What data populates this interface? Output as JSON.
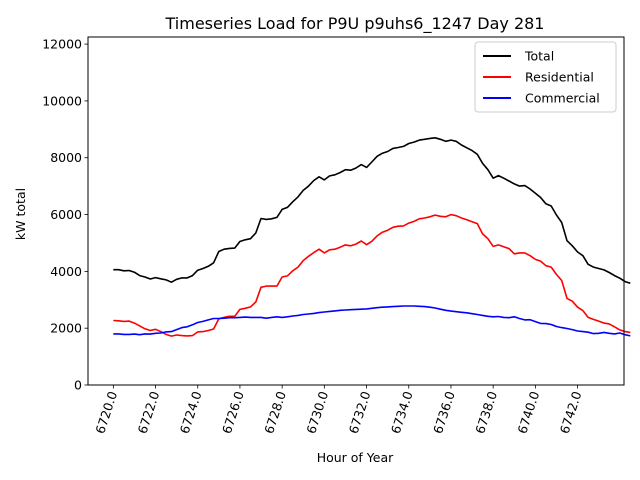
{
  "chart_data": {
    "type": "line",
    "title": "Timeseries Load for P9U p9uhs6_1247  Day 281",
    "xlabel": "Hour of Year",
    "ylabel": "kW total",
    "xlim": [
      6718.8,
      6744.2
    ],
    "ylim": [
      0,
      12250
    ],
    "xticks": [
      6720,
      6722,
      6724,
      6726,
      6728,
      6730,
      6732,
      6734,
      6736,
      6738,
      6740,
      6742
    ],
    "xtick_labels": [
      "6720.0",
      "6722.0",
      "6724.0",
      "6726.0",
      "6728.0",
      "6730.0",
      "6732.0",
      "6734.0",
      "6736.0",
      "6738.0",
      "6740.0",
      "6742.0"
    ],
    "yticks": [
      0,
      2000,
      4000,
      6000,
      8000,
      10000,
      12000
    ],
    "ytick_labels": [
      "0",
      "2000",
      "4000",
      "6000",
      "8000",
      "10000",
      "12000"
    ],
    "legend_position": "top-right",
    "x_start": 6720,
    "x_step": 0.25,
    "series": [
      {
        "name": "Total",
        "color": "#000000",
        "values": [
          4060,
          4060,
          4020,
          4030,
          3970,
          3850,
          3800,
          3730,
          3780,
          3740,
          3700,
          3620,
          3720,
          3770,
          3770,
          3850,
          4040,
          4100,
          4180,
          4300,
          4700,
          4780,
          4810,
          4820,
          5050,
          5110,
          5150,
          5350,
          5860,
          5830,
          5850,
          5900,
          6180,
          6250,
          6450,
          6620,
          6850,
          7000,
          7200,
          7330,
          7220,
          7360,
          7400,
          7480,
          7580,
          7560,
          7640,
          7760,
          7660,
          7850,
          8050,
          8160,
          8220,
          8330,
          8360,
          8400,
          8500,
          8550,
          8620,
          8650,
          8680,
          8700,
          8650,
          8580,
          8620,
          8580,
          8450,
          8350,
          8250,
          8120,
          7800,
          7580,
          7280,
          7370,
          7280,
          7180,
          7080,
          7000,
          7020,
          6900,
          6750,
          6600,
          6380,
          6300,
          5980,
          5720,
          5080,
          4900,
          4680,
          4550,
          4250,
          4150,
          4100,
          4050,
          3960,
          3850,
          3760,
          3640,
          3580
        ]
      },
      {
        "name": "Residential",
        "color": "#ff0000",
        "values": [
          2270,
          2260,
          2240,
          2250,
          2180,
          2080,
          1980,
          1920,
          1960,
          1880,
          1780,
          1720,
          1760,
          1740,
          1730,
          1740,
          1870,
          1880,
          1920,
          1970,
          2330,
          2380,
          2420,
          2420,
          2660,
          2700,
          2750,
          2920,
          3440,
          3480,
          3480,
          3480,
          3800,
          3840,
          4020,
          4150,
          4380,
          4530,
          4660,
          4780,
          4650,
          4760,
          4780,
          4850,
          4930,
          4900,
          4960,
          5070,
          4940,
          5060,
          5250,
          5380,
          5450,
          5550,
          5590,
          5600,
          5700,
          5760,
          5850,
          5880,
          5920,
          5980,
          5940,
          5920,
          6000,
          5960,
          5880,
          5820,
          5750,
          5680,
          5320,
          5150,
          4880,
          4930,
          4870,
          4800,
          4620,
          4650,
          4650,
          4550,
          4420,
          4360,
          4200,
          4150,
          3890,
          3680,
          3050,
          2950,
          2740,
          2620,
          2380,
          2310,
          2250,
          2180,
          2150,
          2050,
          1940,
          1880,
          1850
        ]
      },
      {
        "name": "Commercial",
        "color": "#0000ff",
        "values": [
          1800,
          1800,
          1780,
          1780,
          1790,
          1770,
          1800,
          1790,
          1820,
          1830,
          1870,
          1880,
          1950,
          2020,
          2050,
          2120,
          2200,
          2240,
          2290,
          2340,
          2340,
          2350,
          2370,
          2370,
          2380,
          2390,
          2380,
          2380,
          2380,
          2350,
          2380,
          2400,
          2380,
          2400,
          2430,
          2450,
          2480,
          2500,
          2520,
          2550,
          2570,
          2590,
          2610,
          2630,
          2640,
          2650,
          2660,
          2670,
          2680,
          2700,
          2720,
          2740,
          2750,
          2760,
          2770,
          2780,
          2780,
          2780,
          2770,
          2760,
          2740,
          2710,
          2670,
          2630,
          2600,
          2580,
          2560,
          2540,
          2510,
          2480,
          2450,
          2420,
          2400,
          2410,
          2380,
          2370,
          2400,
          2340,
          2290,
          2300,
          2230,
          2170,
          2160,
          2130,
          2060,
          2020,
          1990,
          1950,
          1900,
          1880,
          1860,
          1810,
          1820,
          1850,
          1820,
          1800,
          1830,
          1770,
          1730
        ]
      }
    ]
  }
}
